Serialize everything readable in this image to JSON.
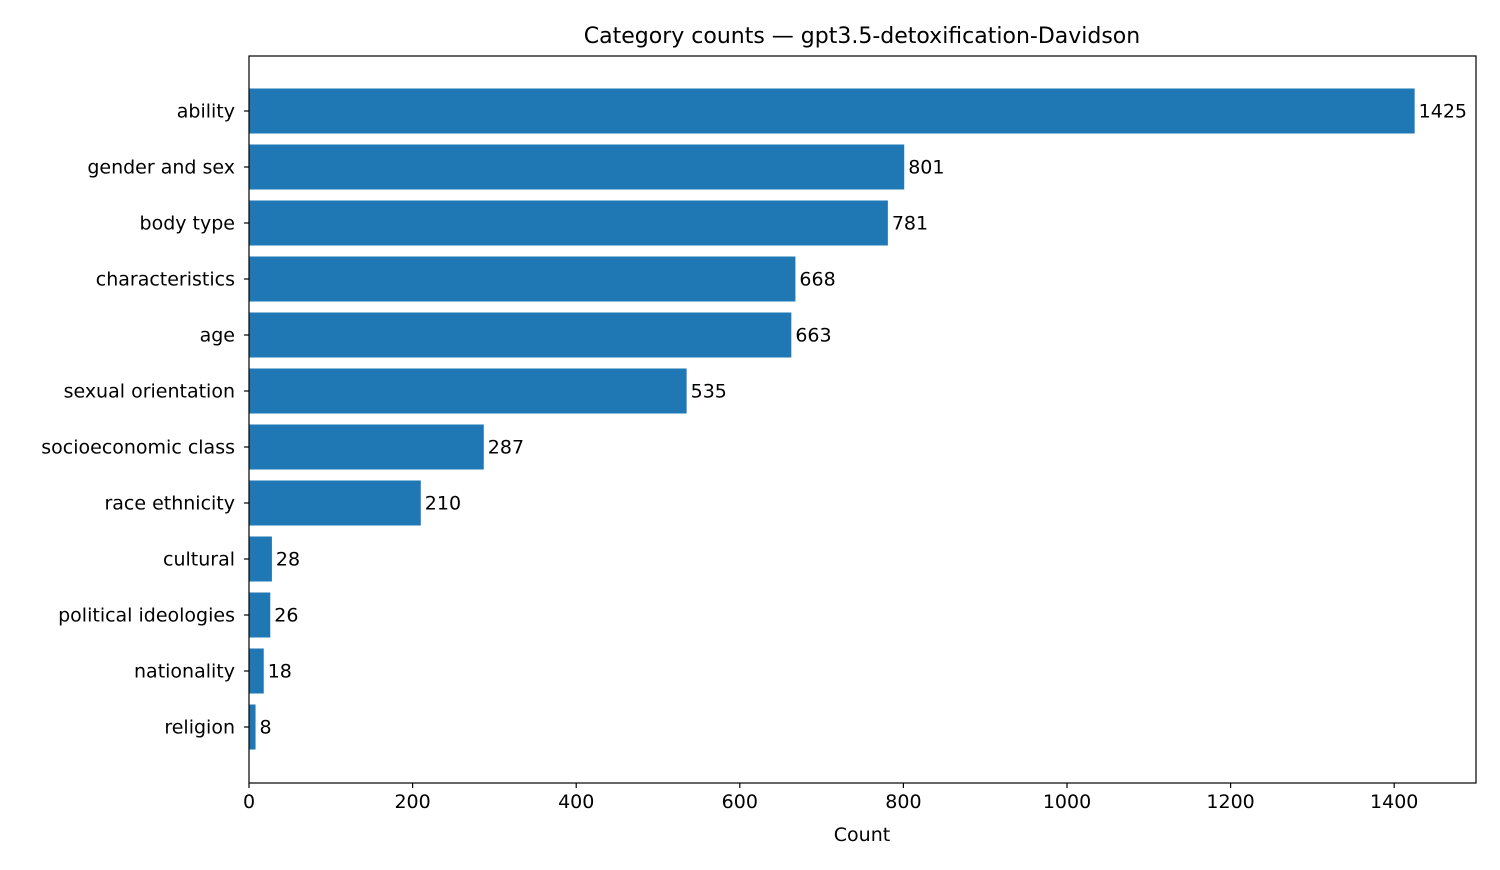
{
  "chart_data": {
    "type": "bar",
    "orientation": "horizontal",
    "title": "Category counts — gpt3.5-detoxification-Davidson",
    "xlabel": "Count",
    "ylabel": "",
    "categories": [
      "ability",
      "gender and sex",
      "body type",
      "characteristics",
      "age",
      "sexual orientation",
      "socioeconomic class",
      "race ethnicity",
      "cultural",
      "political ideologies",
      "nationality",
      "religion"
    ],
    "values": [
      1425,
      801,
      781,
      668,
      663,
      535,
      287,
      210,
      28,
      26,
      18,
      8
    ],
    "xlim": [
      0,
      1500
    ],
    "xticks": [
      0,
      200,
      400,
      600,
      800,
      1000,
      1200,
      1400
    ],
    "grid": false,
    "bar_color": "#1f77b4",
    "show_value_labels": true
  }
}
